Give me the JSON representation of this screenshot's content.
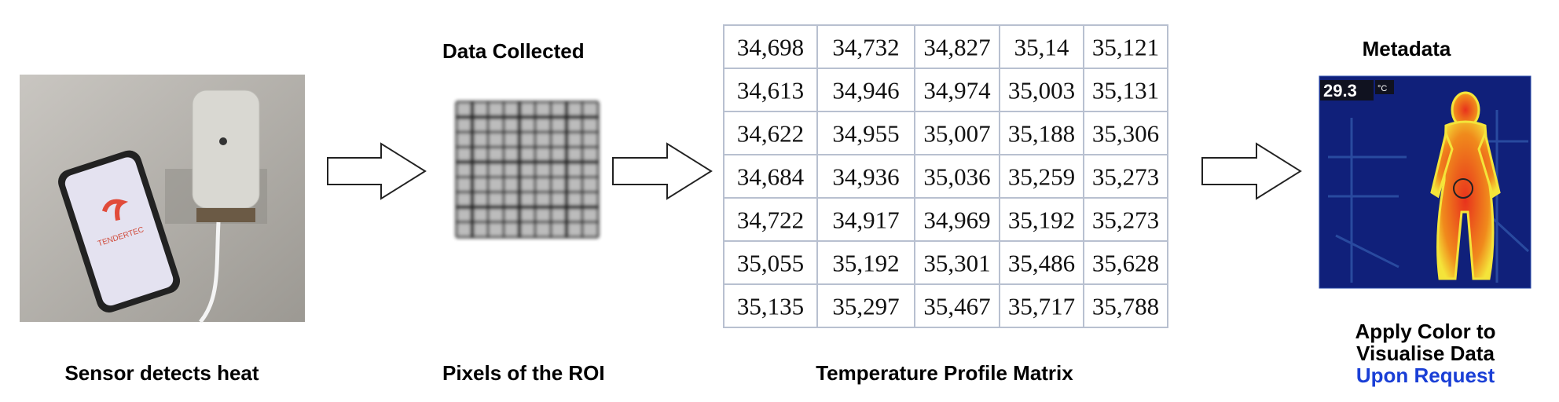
{
  "sensor": {
    "caption": "Sensor detects heat",
    "app_logo": "TENDERTEC"
  },
  "roi": {
    "title": "Data Collected",
    "caption": "Pixels of the ROI"
  },
  "matrix": {
    "caption": "Temperature Profile Matrix",
    "rows": [
      [
        "34,698",
        "34,732",
        "34,827",
        "35,14",
        "35,121"
      ],
      [
        "34,613",
        "34,946",
        "34,974",
        "35,003",
        "35,131"
      ],
      [
        "34,622",
        "34,955",
        "35,007",
        "35,188",
        "35,306"
      ],
      [
        "34,684",
        "34,936",
        "35,036",
        "35,259",
        "35,273"
      ],
      [
        "34,722",
        "34,917",
        "34,969",
        "35,192",
        "35,273"
      ],
      [
        "35,055",
        "35,192",
        "35,301",
        "35,486",
        "35,628"
      ],
      [
        "35,135",
        "35,297",
        "35,467",
        "35,717",
        "35,788"
      ]
    ]
  },
  "visual": {
    "title": "Metadata",
    "temperature": "29.3",
    "unit": "°C",
    "caption_lines": [
      "Apply Color to",
      "Visualise Data"
    ],
    "highlight": "Upon Request"
  }
}
